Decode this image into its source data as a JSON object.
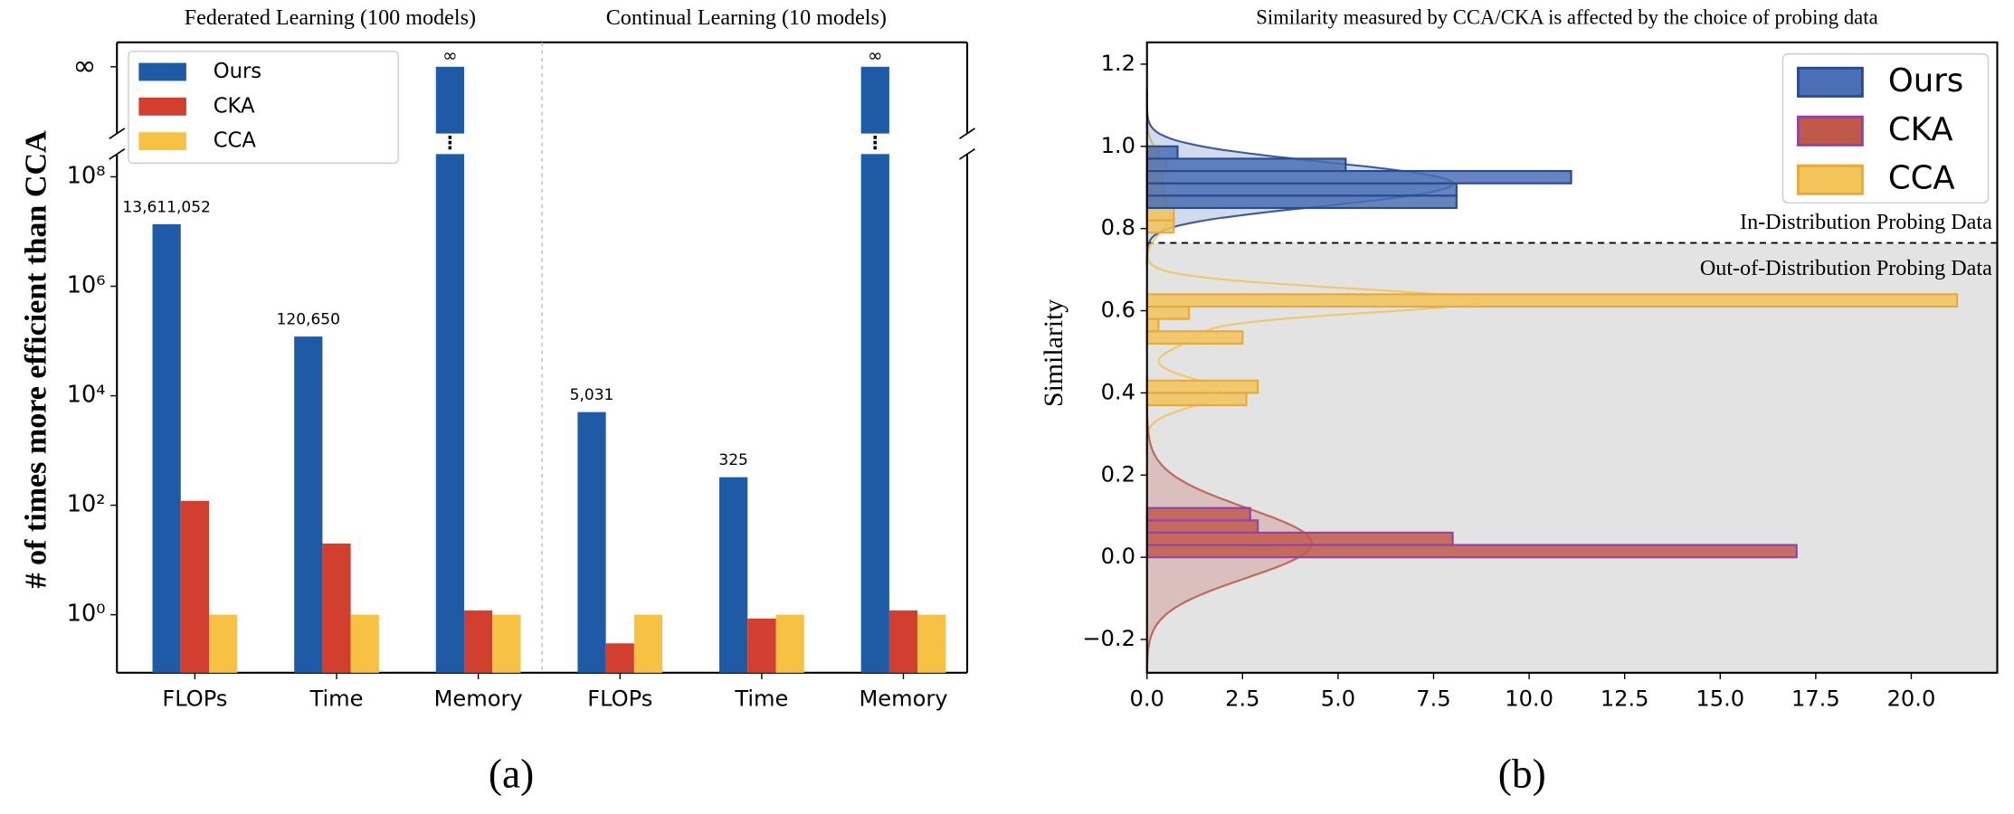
{
  "chart_data": [
    {
      "type": "bar",
      "yscale": "log",
      "group_titles": [
        "Federated Learning (100 models)",
        "Continual Learning (10 models)"
      ],
      "ylabel": "# of times more efficient than CCA",
      "categories": [
        "FLOPs",
        "Time",
        "Memory",
        "FLOPs",
        "Time",
        "Memory"
      ],
      "series": [
        {
          "name": "Ours",
          "color": "#1f5aa6",
          "values": [
            13611052,
            120650,
            null,
            5031,
            325,
            null
          ],
          "value_labels": [
            "13,611,052",
            "120,650",
            "∞",
            "5,031",
            "325",
            "∞"
          ]
        },
        {
          "name": "CKA",
          "color": "#d33f2f",
          "values": [
            120,
            20,
            1.2,
            0.3,
            0.85,
            1.2
          ]
        },
        {
          "name": "CCA",
          "color": "#f7c244",
          "values": [
            1,
            1,
            1,
            1,
            1,
            1
          ]
        }
      ],
      "ylim": [
        0.087,
        260000000
      ],
      "yticks": [
        {
          "value": 1,
          "label": "10⁰"
        },
        {
          "value": 100,
          "label": "10²"
        },
        {
          "value": 10000,
          "label": "10⁴"
        },
        {
          "value": 1000000,
          "label": "10⁶"
        },
        {
          "value": 100000000,
          "label": "10⁸"
        }
      ],
      "inf_tick": "∞",
      "legend": "upper left",
      "caption": "(a)"
    },
    {
      "type": "histogram",
      "orientation": "horizontal",
      "title": "Similarity measured by CCA/CKA is affected by the choice of probing data",
      "ylabel": "Similarity",
      "series": [
        {
          "name": "Ours",
          "color": "#4a6fb5",
          "edgecolor": "#2a4a8f",
          "bins": [
            0.85,
            0.88,
            0.91,
            0.94,
            0.97,
            1.0
          ],
          "counts": [
            8.1,
            8.1,
            11.1,
            5.2,
            0.8
          ]
        },
        {
          "name": "CKA",
          "color": "#c0594a",
          "edgecolor": "#8e44ad",
          "bins": [
            0.0,
            0.03,
            0.06,
            0.09,
            0.12
          ],
          "counts": [
            17.0,
            8.0,
            2.9,
            2.7
          ]
        },
        {
          "name": "CCA",
          "color": "#f2c45a",
          "edgecolor": "#e8a83a",
          "bins": [
            0.37,
            0.4,
            0.43,
            0.46,
            0.49,
            0.52,
            0.55,
            0.58,
            0.61,
            0.64,
            0.67,
            0.7,
            0.73,
            0.76,
            0.79,
            0.82,
            0.85,
            0.88,
            0.91,
            0.94,
            0.97,
            1.0
          ],
          "counts": [
            2.6,
            2.9,
            0,
            0,
            0,
            2.5,
            0.3,
            1.1,
            21.2,
            0,
            0,
            0,
            0,
            0,
            0.7,
            0.7,
            0.5,
            0.4,
            0.4,
            0.5,
            0.3
          ]
        }
      ],
      "xlim": [
        0,
        22.25
      ],
      "ylim": [
        -0.281,
        1.253
      ],
      "xticks": [
        {
          "value": 0,
          "label": "0.0"
        },
        {
          "value": 2.5,
          "label": "2.5"
        },
        {
          "value": 5,
          "label": "5.0"
        },
        {
          "value": 7.5,
          "label": "7.5"
        },
        {
          "value": 10,
          "label": "10.0"
        },
        {
          "value": 12.5,
          "label": "12.5"
        },
        {
          "value": 15,
          "label": "15.0"
        },
        {
          "value": 17.5,
          "label": "17.5"
        },
        {
          "value": 20,
          "label": "20.0"
        }
      ],
      "yticks": [
        {
          "value": -0.2,
          "label": "−0.2"
        },
        {
          "value": 0,
          "label": "0.0"
        },
        {
          "value": 0.2,
          "label": "0.2"
        },
        {
          "value": 0.4,
          "label": "0.4"
        },
        {
          "value": 0.6,
          "label": "0.6"
        },
        {
          "value": 0.8,
          "label": "0.8"
        },
        {
          "value": 1.0,
          "label": "1.0"
        },
        {
          "value": 1.2,
          "label": "1.2"
        }
      ],
      "threshold": 0.765,
      "annotations": [
        "In-Distribution Probing Data",
        "Out-of-Distribution Probing Data"
      ],
      "legend": "upper right",
      "caption": "(b)"
    }
  ]
}
